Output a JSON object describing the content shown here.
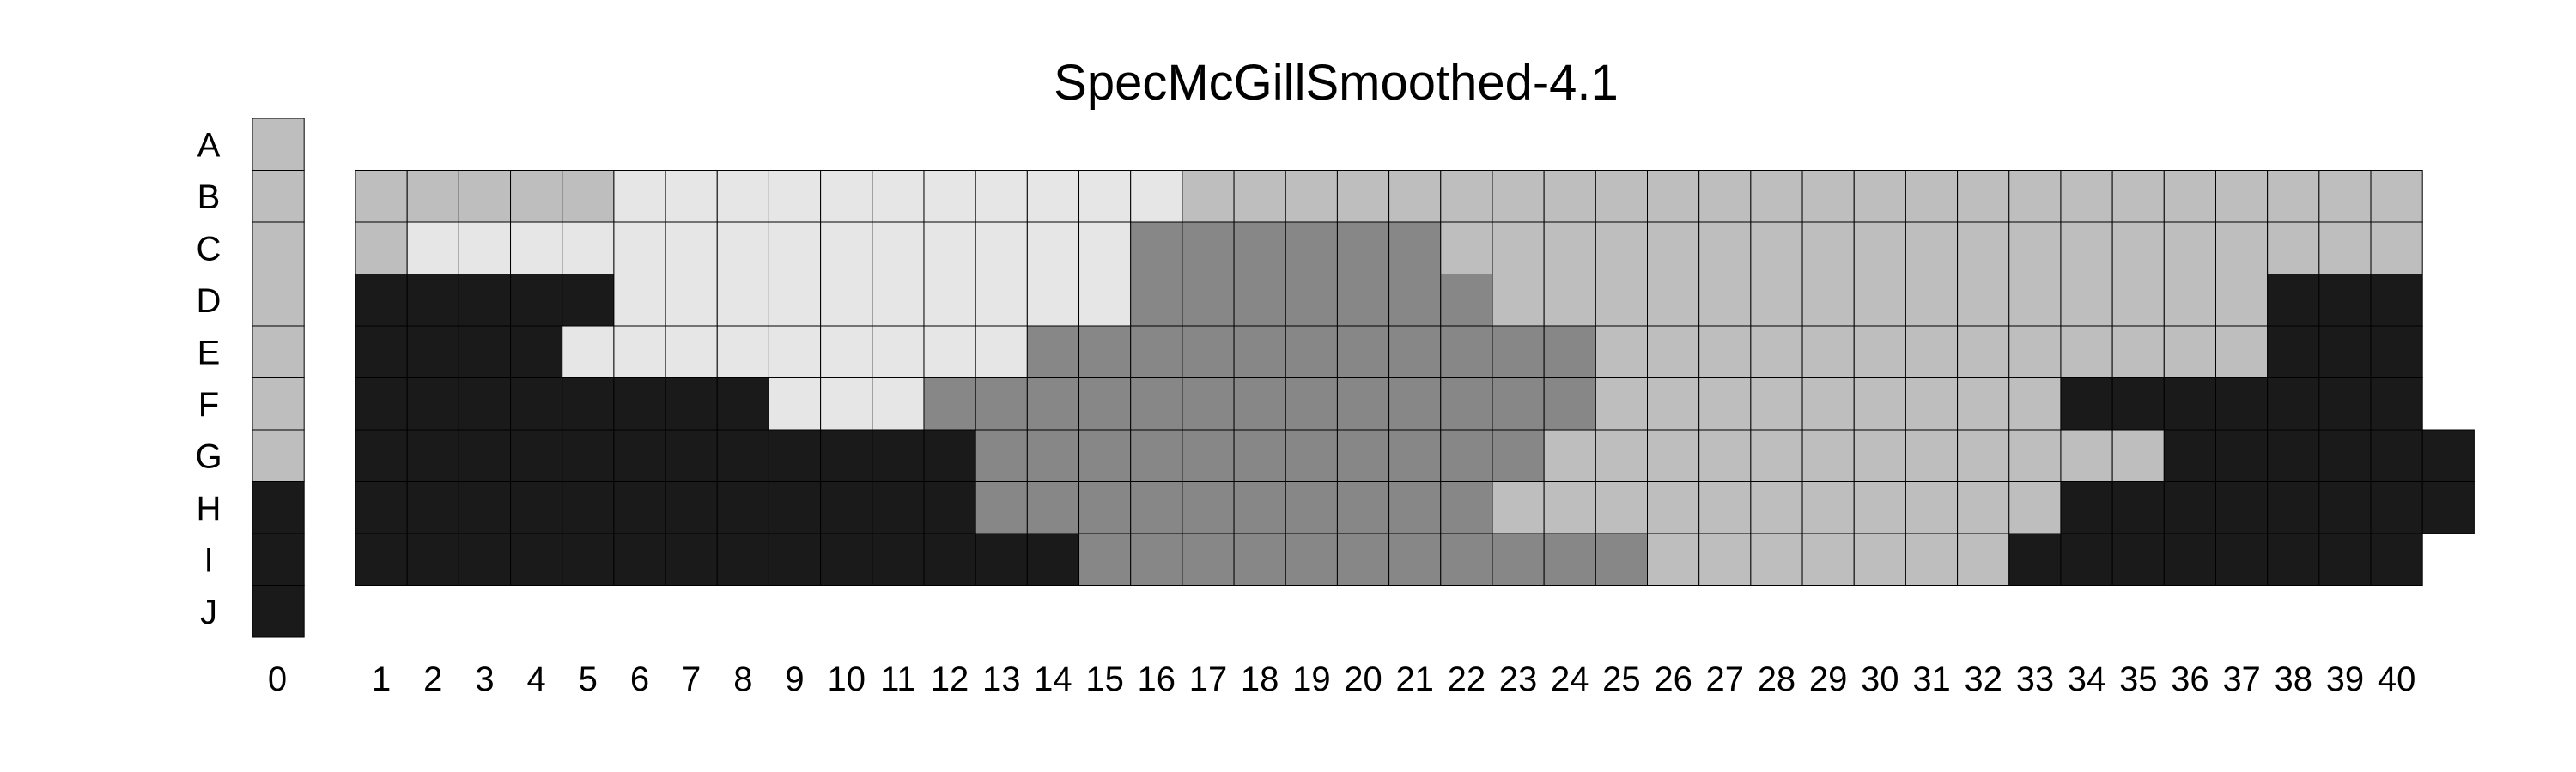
{
  "chart_data": {
    "type": "heatmap",
    "title": "SpecMcGillSmoothed-4.1",
    "rows": [
      "A",
      "B",
      "C",
      "D",
      "E",
      "F",
      "G",
      "H",
      "I",
      "J"
    ],
    "side_column": {
      "label": "0",
      "values": [
        "L",
        "L",
        "L",
        "L",
        "L",
        "L",
        "L",
        "K",
        "K",
        "K"
      ]
    },
    "columns": [
      "1",
      "2",
      "3",
      "4",
      "5",
      "6",
      "7",
      "8",
      "9",
      "10",
      "11",
      "12",
      "13",
      "14",
      "15",
      "16",
      "17",
      "18",
      "19",
      "20",
      "21",
      "22",
      "23",
      "24",
      "25",
      "26",
      "27",
      "28",
      "29",
      "30",
      "31",
      "32",
      "33",
      "34",
      "35",
      "36",
      "37",
      "38",
      "39",
      "40"
    ],
    "grid_rows": [
      "B",
      "C",
      "D",
      "E",
      "F",
      "G",
      "H",
      "I"
    ],
    "grid": [
      "LLLLLWWWWWWWWWWWLLLLLLLLLLLLLLLLLLLLLLLL",
      "LWWWWWWWWWWWWWWDDDDDDLLLLLLLLLLLLLLLLLLL",
      "KKKKKWWWWWWWWWWDDDDDDDLLLLLLLLLLLLLLLKKK",
      "KKKKWWWWWWWWWDDDDDDDDDDDLLLLLLLLLLLLLKKK",
      "KKKKKKKKWWWDDDDDDDDDDDDDLLLLLLLLLKKKKKKK",
      "KKKKKKKKKKKKDDDDDDDDDDDLLLLLLLLLLLLKKKKKK",
      "KKKKKKKKKKKKDDDDDDDDDDLLLLLLLLLLLKKKKKKKK",
      "KKKKKKKKKKKKKKDDDDDDDDDDDLLLLLLLKKKKKKKK"
    ],
    "legend_codes": {
      "K": "#1a1a1a",
      "D": "#878787",
      "L": "#bebebe",
      "W": "#e6e6e6"
    }
  }
}
